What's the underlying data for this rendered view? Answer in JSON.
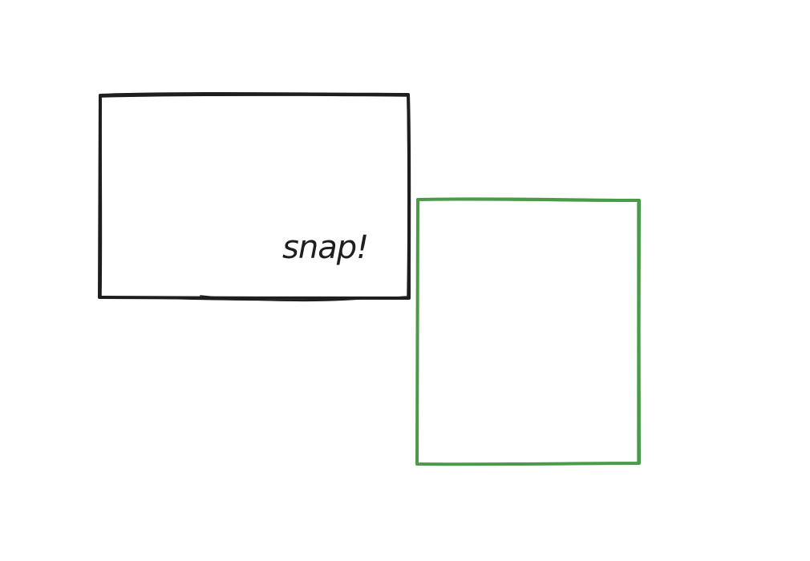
{
  "canvas": {
    "background": "#ffffff"
  },
  "shapes": [
    {
      "id": "rect-black",
      "kind": "rectangle",
      "stroke": "#1e1e1e",
      "label": "snap!"
    },
    {
      "id": "rect-green",
      "kind": "rectangle",
      "stroke": "#4a9a4a",
      "label": ""
    }
  ]
}
